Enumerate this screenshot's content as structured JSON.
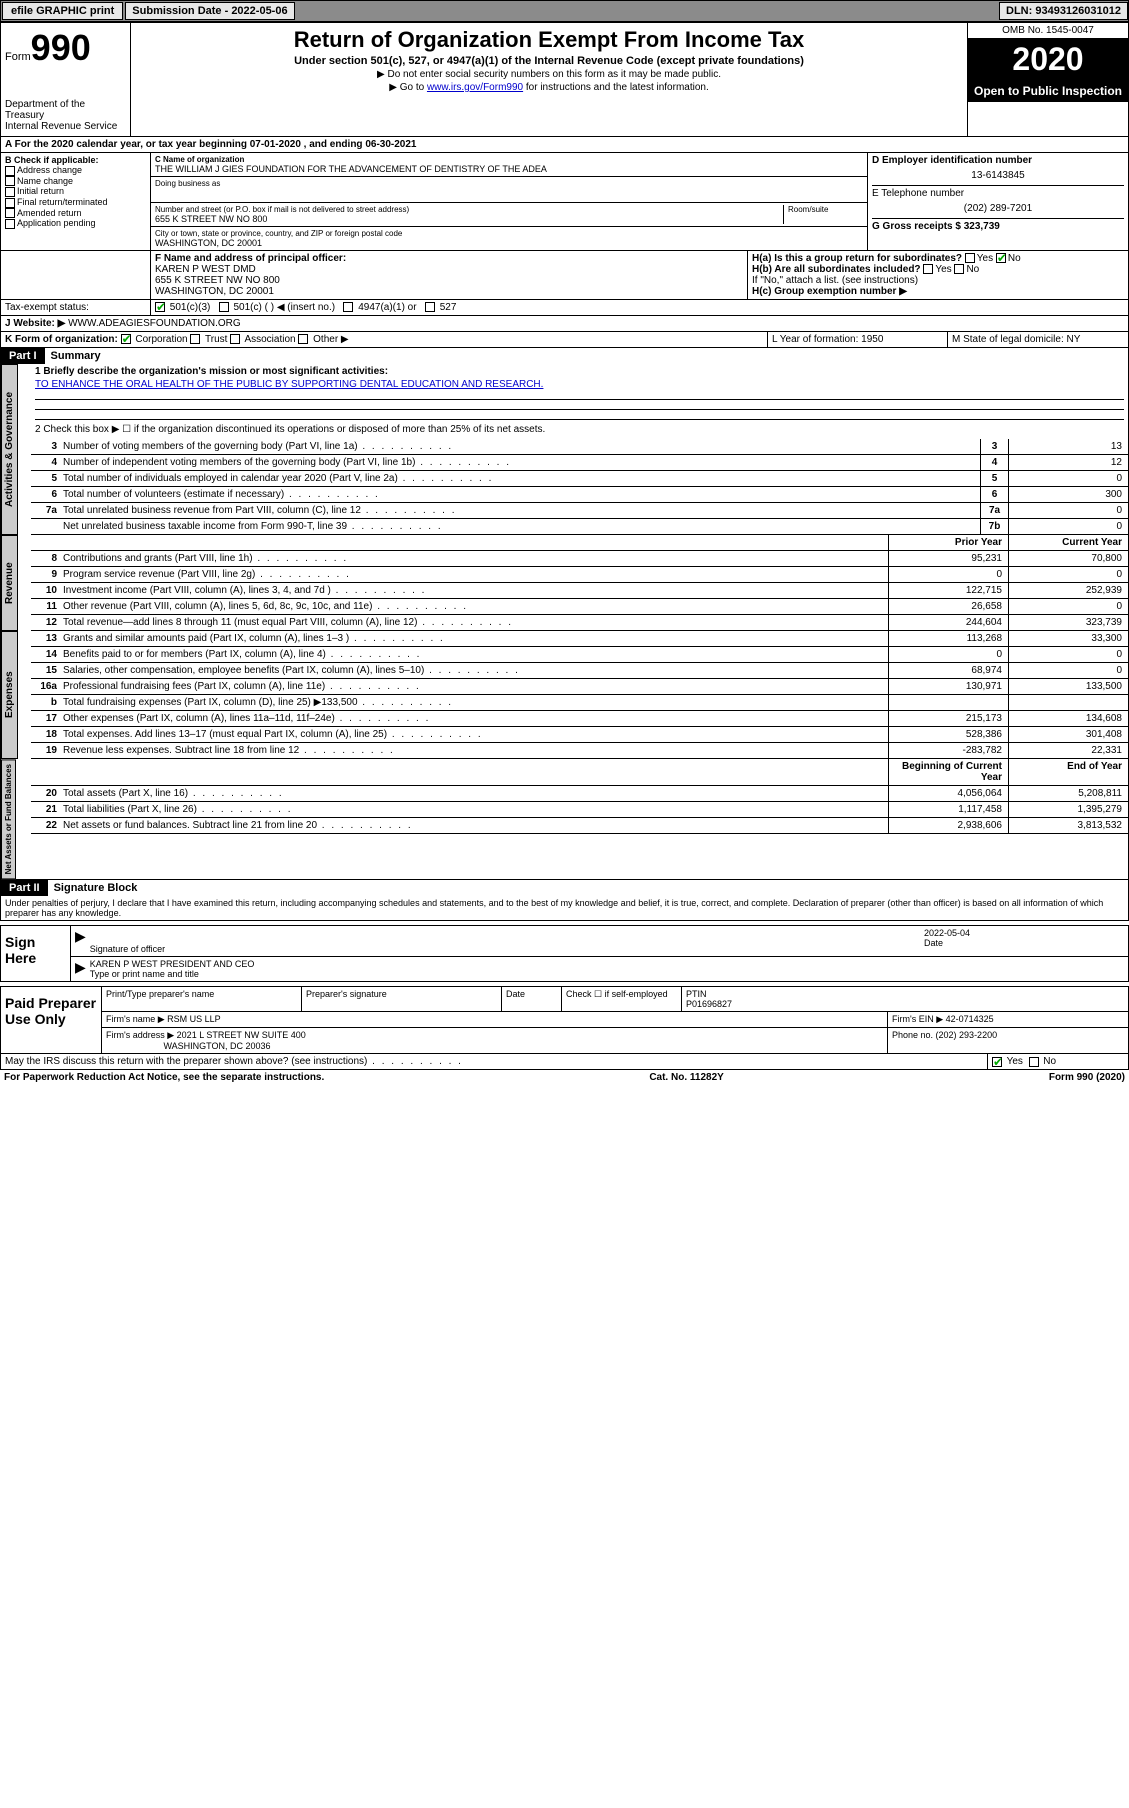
{
  "topbar": {
    "efile": "efile GRAPHIC print",
    "submission_label": "Submission Date - 2022-05-06",
    "dln": "DLN: 93493126031012"
  },
  "header": {
    "form_label": "Form",
    "form_number": "990",
    "dept": "Department of the Treasury",
    "irs": "Internal Revenue Service",
    "title": "Return of Organization Exempt From Income Tax",
    "subtitle": "Under section 501(c), 527, or 4947(a)(1) of the Internal Revenue Code (except private foundations)",
    "note1": "▶ Do not enter social security numbers on this form as it may be made public.",
    "note2_pre": "▶ Go to ",
    "note2_link": "www.irs.gov/Form990",
    "note2_post": " for instructions and the latest information.",
    "omb": "OMB No. 1545-0047",
    "year": "2020",
    "open": "Open to Public Inspection"
  },
  "period": {
    "text": "A For the 2020 calendar year, or tax year beginning 07-01-2020  , and ending 06-30-2021"
  },
  "section_b": {
    "label": "B Check if applicable:",
    "items": [
      "Address change",
      "Name change",
      "Initial return",
      "Final return/terminated",
      "Amended return",
      "Application pending"
    ]
  },
  "section_c": {
    "name_label": "C Name of organization",
    "name": "THE WILLIAM J GIES FOUNDATION FOR THE ADVANCEMENT OF DENTISTRY OF THE ADEA",
    "dba_label": "Doing business as",
    "addr_label": "Number and street (or P.O. box if mail is not delivered to street address)",
    "room_label": "Room/suite",
    "addr": "655 K STREET NW NO 800",
    "city_label": "City or town, state or province, country, and ZIP or foreign postal code",
    "city": "WASHINGTON, DC  20001"
  },
  "section_d": {
    "ein_label": "D Employer identification number",
    "ein": "13-6143845",
    "phone_label": "E Telephone number",
    "phone": "(202) 289-7201",
    "gross_label": "G Gross receipts $ 323,739"
  },
  "section_f": {
    "label": "F  Name and address of principal officer:",
    "name": "KAREN P WEST DMD",
    "addr1": "655 K STREET NW NO 800",
    "addr2": "WASHINGTON, DC  20001"
  },
  "section_h": {
    "ha": "H(a)  Is this a group return for subordinates?",
    "hb": "H(b)  Are all subordinates included?",
    "hb_note": "If \"No,\" attach a list. (see instructions)",
    "hc": "H(c)  Group exemption number ▶",
    "yes": "Yes",
    "no": "No"
  },
  "tax_exempt": {
    "label": "Tax-exempt status:",
    "opt1": "501(c)(3)",
    "opt2": "501(c) ( )  ◀ (insert no.)",
    "opt3": "4947(a)(1) or",
    "opt4": "527"
  },
  "website": {
    "label": "J  Website: ▶",
    "value": "WWW.ADEAGIESFOUNDATION.ORG"
  },
  "org_form": {
    "label": "K Form of organization:",
    "corp": "Corporation",
    "trust": "Trust",
    "assoc": "Association",
    "other": "Other ▶",
    "year_label": "L Year of formation: 1950",
    "state_label": "M State of legal domicile: NY"
  },
  "part1": {
    "header": "Part I",
    "title": "Summary",
    "line1_label": "1  Briefly describe the organization's mission or most significant activities:",
    "mission": "TO ENHANCE THE ORAL HEALTH OF THE PUBLIC BY SUPPORTING DENTAL EDUCATION AND RESEARCH.",
    "line2": "2    Check this box ▶ ☐  if the organization discontinued its operations or disposed of more than 25% of its net assets.",
    "vert_gov": "Activities & Governance",
    "vert_rev": "Revenue",
    "vert_exp": "Expenses",
    "vert_net": "Net Assets or Fund Balances",
    "col_prior": "Prior Year",
    "col_current": "Current Year",
    "col_beg": "Beginning of Current Year",
    "col_end": "End of Year",
    "lines_gov": [
      {
        "n": "3",
        "d": "Number of voting members of the governing body (Part VI, line 1a)",
        "box": "3",
        "v": "13"
      },
      {
        "n": "4",
        "d": "Number of independent voting members of the governing body (Part VI, line 1b)",
        "box": "4",
        "v": "12"
      },
      {
        "n": "5",
        "d": "Total number of individuals employed in calendar year 2020 (Part V, line 2a)",
        "box": "5",
        "v": "0"
      },
      {
        "n": "6",
        "d": "Total number of volunteers (estimate if necessary)",
        "box": "6",
        "v": "300"
      },
      {
        "n": "7a",
        "d": "Total unrelated business revenue from Part VIII, column (C), line 12",
        "box": "7a",
        "v": "0"
      },
      {
        "n": "",
        "d": "Net unrelated business taxable income from Form 990-T, line 39",
        "box": "7b",
        "v": "0"
      }
    ],
    "lines_rev": [
      {
        "n": "8",
        "d": "Contributions and grants (Part VIII, line 1h)",
        "p": "95,231",
        "c": "70,800"
      },
      {
        "n": "9",
        "d": "Program service revenue (Part VIII, line 2g)",
        "p": "0",
        "c": "0"
      },
      {
        "n": "10",
        "d": "Investment income (Part VIII, column (A), lines 3, 4, and 7d )",
        "p": "122,715",
        "c": "252,939"
      },
      {
        "n": "11",
        "d": "Other revenue (Part VIII, column (A), lines 5, 6d, 8c, 9c, 10c, and 11e)",
        "p": "26,658",
        "c": "0"
      },
      {
        "n": "12",
        "d": "Total revenue—add lines 8 through 11 (must equal Part VIII, column (A), line 12)",
        "p": "244,604",
        "c": "323,739"
      }
    ],
    "lines_exp": [
      {
        "n": "13",
        "d": "Grants and similar amounts paid (Part IX, column (A), lines 1–3 )",
        "p": "113,268",
        "c": "33,300"
      },
      {
        "n": "14",
        "d": "Benefits paid to or for members (Part IX, column (A), line 4)",
        "p": "0",
        "c": "0"
      },
      {
        "n": "15",
        "d": "Salaries, other compensation, employee benefits (Part IX, column (A), lines 5–10)",
        "p": "68,974",
        "c": "0"
      },
      {
        "n": "16a",
        "d": "Professional fundraising fees (Part IX, column (A), line 11e)",
        "p": "130,971",
        "c": "133,500"
      },
      {
        "n": "b",
        "d": "Total fundraising expenses (Part IX, column (D), line 25) ▶133,500",
        "p": "",
        "c": ""
      },
      {
        "n": "17",
        "d": "Other expenses (Part IX, column (A), lines 11a–11d, 11f–24e)",
        "p": "215,173",
        "c": "134,608"
      },
      {
        "n": "18",
        "d": "Total expenses. Add lines 13–17 (must equal Part IX, column (A), line 25)",
        "p": "528,386",
        "c": "301,408"
      },
      {
        "n": "19",
        "d": "Revenue less expenses. Subtract line 18 from line 12",
        "p": "-283,782",
        "c": "22,331"
      }
    ],
    "lines_net": [
      {
        "n": "20",
        "d": "Total assets (Part X, line 16)",
        "p": "4,056,064",
        "c": "5,208,811"
      },
      {
        "n": "21",
        "d": "Total liabilities (Part X, line 26)",
        "p": "1,117,458",
        "c": "1,395,279"
      },
      {
        "n": "22",
        "d": "Net assets or fund balances. Subtract line 21 from line 20",
        "p": "2,938,606",
        "c": "3,813,532"
      }
    ]
  },
  "part2": {
    "header": "Part II",
    "title": "Signature Block",
    "perjury": "Under penalties of perjury, I declare that I have examined this return, including accompanying schedules and statements, and to the best of my knowledge and belief, it is true, correct, and complete. Declaration of preparer (other than officer) is based on all information of which preparer has any knowledge."
  },
  "sign": {
    "label": "Sign Here",
    "sig_label": "Signature of officer",
    "date_label": "Date",
    "date": "2022-05-04",
    "name": "KAREN P WEST PRESIDENT AND CEO",
    "name_label": "Type or print name and title"
  },
  "preparer": {
    "label": "Paid Preparer Use Only",
    "print_label": "Print/Type preparer's name",
    "sig_label": "Preparer's signature",
    "date_label": "Date",
    "check_label": "Check ☐ if self-employed",
    "ptin_label": "PTIN",
    "ptin": "P01696827",
    "firm_label": "Firm's name   ▶",
    "firm": "RSM US LLP",
    "ein_label": "Firm's EIN ▶ 42-0714325",
    "addr_label": "Firm's address ▶",
    "addr1": "2021 L STREET NW SUITE 400",
    "addr2": "WASHINGTON, DC  20036",
    "phone_label": "Phone no. (202) 293-2200"
  },
  "discuss": {
    "text": "May the IRS discuss this return with the preparer shown above? (see instructions)",
    "yes": "Yes",
    "no": "No"
  },
  "footer": {
    "left": "For Paperwork Reduction Act Notice, see the separate instructions.",
    "mid": "Cat. No. 11282Y",
    "right": "Form 990 (2020)"
  }
}
